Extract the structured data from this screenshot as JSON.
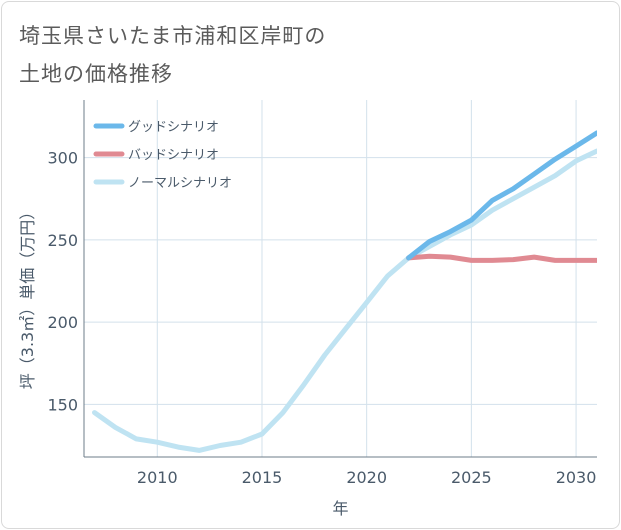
{
  "title_lines": [
    "埼玉県さいたま市浦和区岸町の",
    "土地の価格推移"
  ],
  "chart_data": {
    "type": "line",
    "title": "埼玉県さいたま市浦和区岸町の土地の価格推移",
    "xlabel": "年",
    "ylabel": "坪（3.3㎡）単価（万円）",
    "xlim": [
      2006.5,
      2031
    ],
    "ylim": [
      118,
      335
    ],
    "xticks": [
      2010,
      2015,
      2020,
      2025,
      2030
    ],
    "yticks": [
      150,
      200,
      250,
      300
    ],
    "grid": true,
    "legend_position": "top-left",
    "series": [
      {
        "name": "グッドシナリオ",
        "color": "#6bb8ea",
        "x": [
          2022,
          2023,
          2024,
          2025,
          2026,
          2027,
          2028,
          2029,
          2030,
          2031
        ],
        "y": [
          239,
          249,
          255,
          262,
          274,
          281,
          290,
          299,
          307,
          315
        ]
      },
      {
        "name": "バッドシナリオ",
        "color": "#e08a92",
        "x": [
          2022,
          2023,
          2024,
          2025,
          2026,
          2027,
          2028,
          2029,
          2030,
          2031
        ],
        "y": [
          239,
          240,
          239.5,
          237.5,
          237.5,
          238,
          239.5,
          237.5,
          237.5,
          237.5
        ]
      },
      {
        "name": "ノーマルシナリオ",
        "color": "#bfe3f2",
        "x": [
          2007,
          2008,
          2009,
          2010,
          2011,
          2012,
          2013,
          2014,
          2015,
          2016,
          2017,
          2018,
          2019,
          2020,
          2021,
          2022,
          2023,
          2024,
          2025,
          2026,
          2027,
          2028,
          2029,
          2030,
          2031
        ],
        "y": [
          145,
          136,
          129,
          127,
          124,
          122,
          125,
          127,
          132,
          145,
          162,
          180,
          196,
          212,
          228,
          239,
          246,
          253,
          259,
          268,
          275,
          282,
          289,
          298,
          304
        ]
      }
    ]
  }
}
